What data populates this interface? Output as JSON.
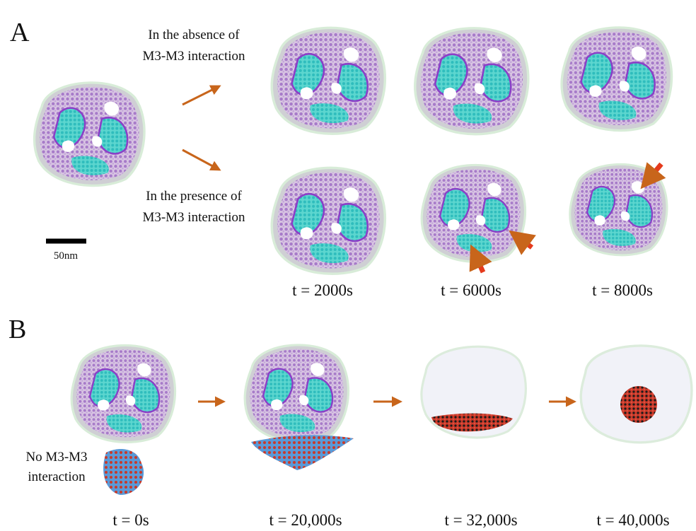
{
  "panels": [
    {
      "label": "A",
      "captions": [
        [
          "In the absence of",
          "M3-M3 interaction"
        ],
        [
          "In the presence of",
          "M3-M3 interaction"
        ]
      ],
      "scale_bar": "50nm",
      "times": [
        "t = 2000s",
        "t = 6000s",
        "t = 8000s"
      ]
    },
    {
      "label": "B",
      "captions": [
        [
          "No M3-M3",
          "interaction"
        ]
      ],
      "times": [
        "t = 0s",
        "t = 20,000s",
        "t = 32,000s",
        "t = 40,000s"
      ]
    }
  ]
}
